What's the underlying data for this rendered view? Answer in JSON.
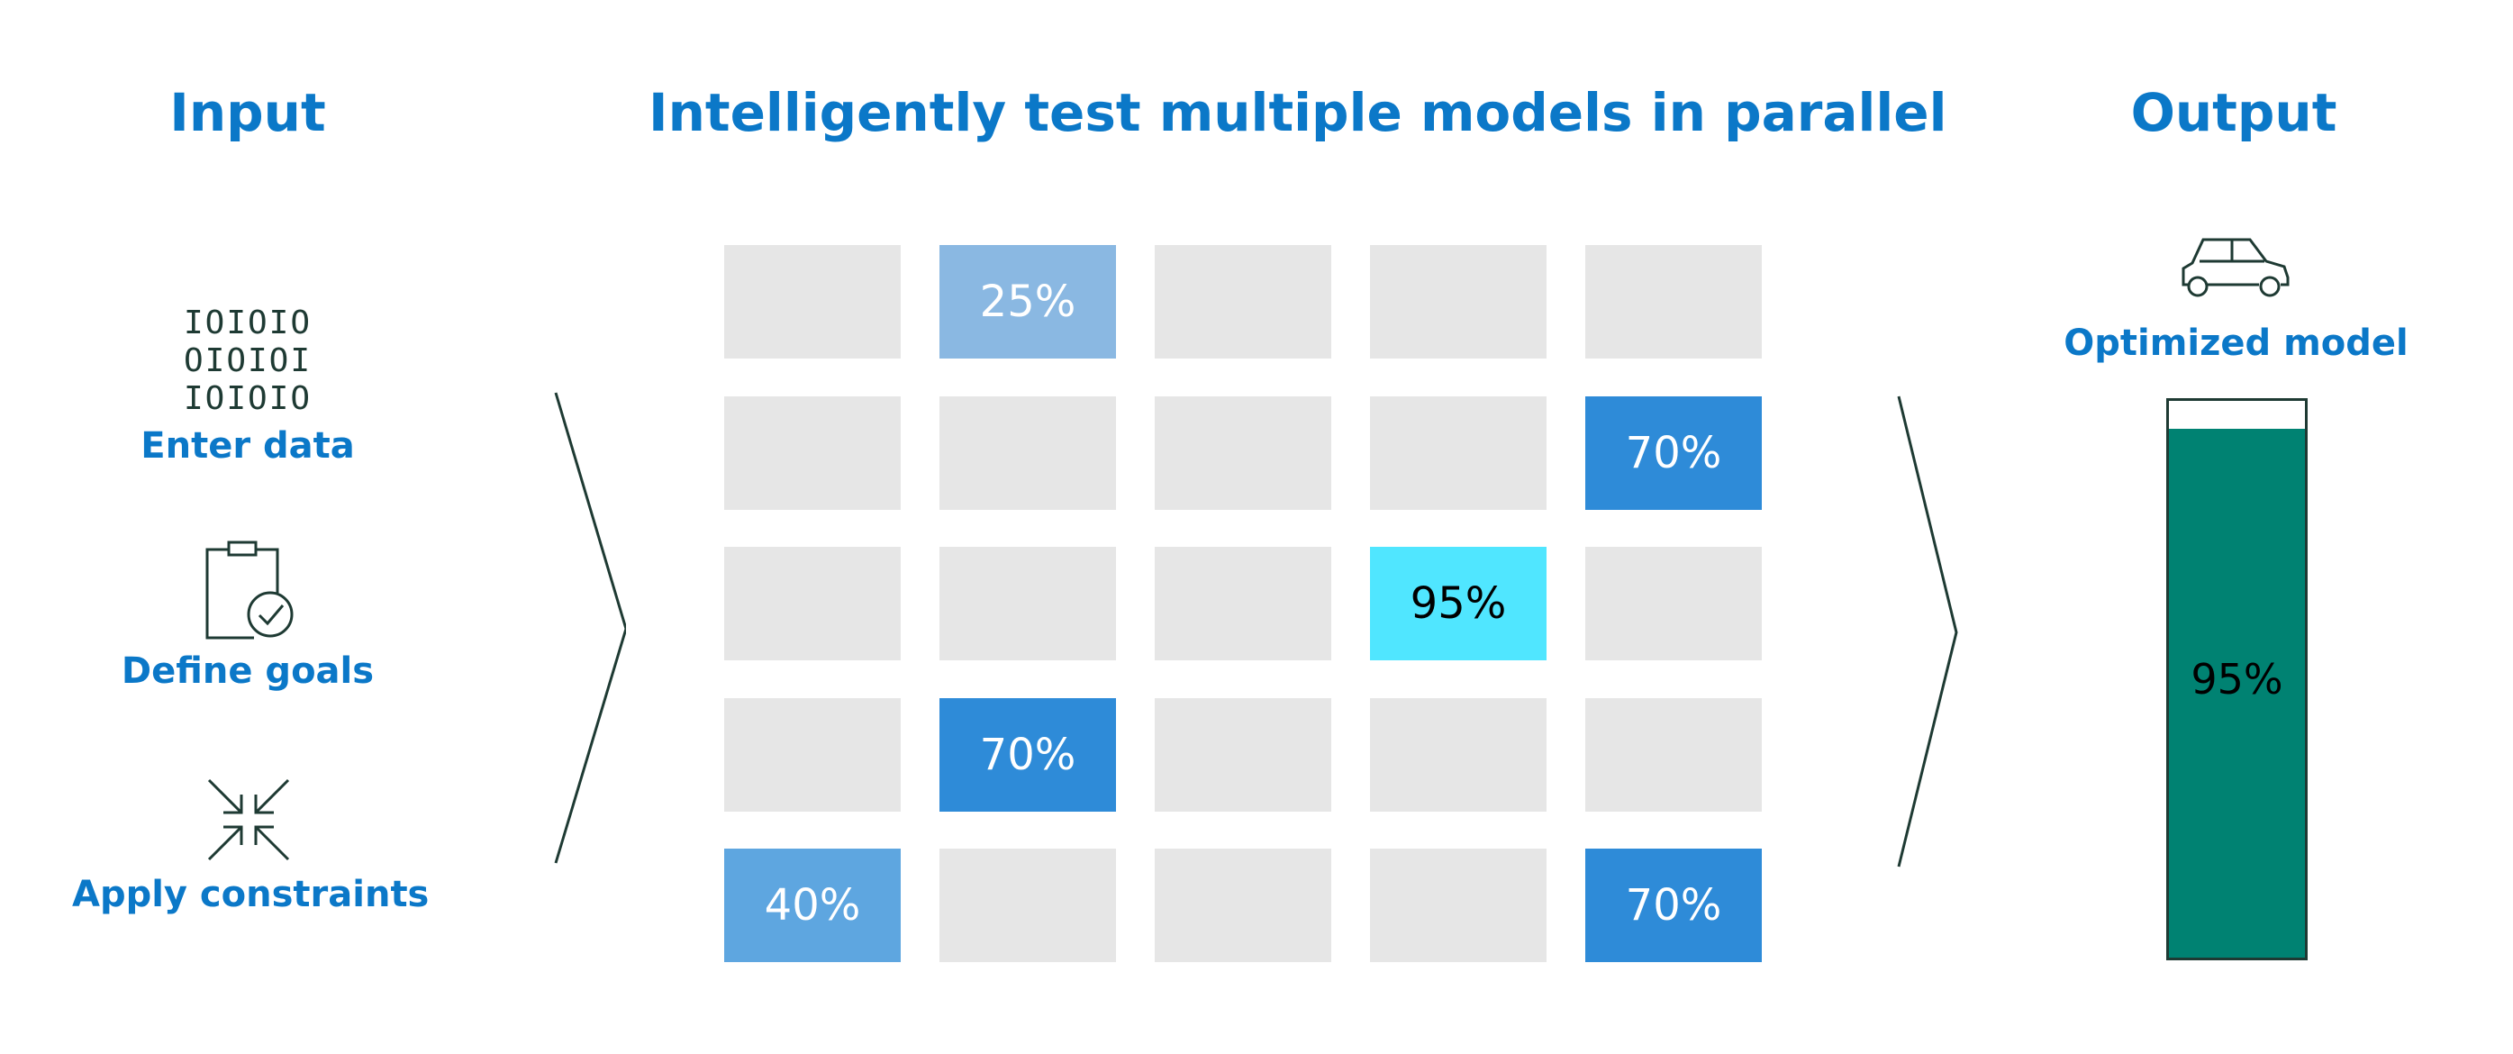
{
  "headings": {
    "input": "Input",
    "middle": "Intelligently test multiple models in parallel",
    "output": "Output"
  },
  "inputs": [
    {
      "label": "Enter data",
      "icon": "binary-data-icon",
      "binary_lines": [
        "IOIOIO",
        "OIOIOI",
        "IOIOIO"
      ]
    },
    {
      "label": "Define goals",
      "icon": "clipboard-check-icon"
    },
    {
      "label": "Apply constraints",
      "icon": "collapse-arrows-icon"
    }
  ],
  "grid": {
    "rows": 5,
    "cols": 5,
    "cells": [
      {
        "row": 0,
        "col": 1,
        "value": "25%",
        "color": "#8ab8e2",
        "text_color": "#ffffff"
      },
      {
        "row": 1,
        "col": 4,
        "value": "70%",
        "color": "#2e8bd8",
        "text_color": "#ffffff"
      },
      {
        "row": 2,
        "col": 3,
        "value": "95%",
        "color": "#50e6ff",
        "text_color": "#000000"
      },
      {
        "row": 3,
        "col": 1,
        "value": "70%",
        "color": "#2e8bd8",
        "text_color": "#ffffff"
      },
      {
        "row": 4,
        "col": 0,
        "value": "40%",
        "color": "#5ea6e0",
        "text_color": "#ffffff"
      },
      {
        "row": 4,
        "col": 4,
        "value": "70%",
        "color": "#2e8bd8",
        "text_color": "#ffffff"
      }
    ],
    "empty_color": "#e6e6e6"
  },
  "output": {
    "label": "Optimized model",
    "icon": "car-icon",
    "value_text": "95%",
    "fill_fraction": 0.95,
    "fill_color": "#008272"
  },
  "colors": {
    "accent": "#0b78c8",
    "icon_stroke": "#1e3a33"
  }
}
